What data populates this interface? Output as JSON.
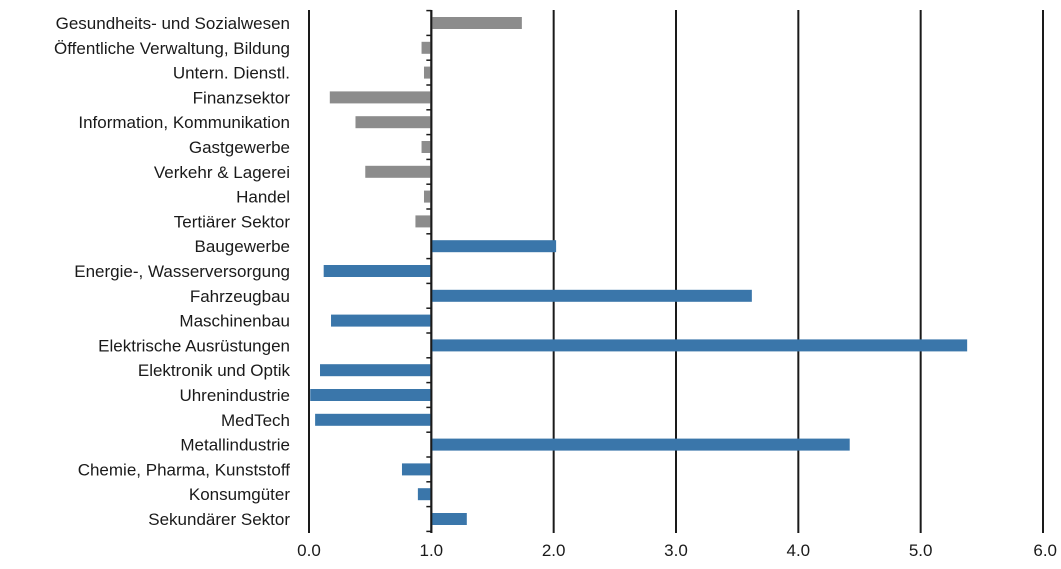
{
  "chart_data": {
    "type": "bar",
    "orientation": "horizontal",
    "categories": [
      "Gesundheits- und Sozialwesen",
      "Öffentliche Verwaltung, Bildung",
      "Untern. Dienstl.",
      "Finanzsektor",
      "Information, Kommunikation",
      "Gastgewerbe",
      "Verkehr & Lagerei",
      "Handel",
      "Tertiärer Sektor",
      "Baugewerbe",
      "Energie-, Wasserversorgung",
      "Fahrzeugbau",
      "Maschinenbau",
      "Elektrische Ausrüstungen",
      "Elektronik und Optik",
      "Uhrenindustrie",
      "MedTech",
      "Metallindustrie",
      "Chemie, Pharma, Kunststoff",
      "Konsumgüter",
      "Sekundärer Sektor"
    ],
    "values": [
      1.74,
      0.92,
      0.94,
      0.17,
      0.38,
      0.92,
      0.46,
      0.94,
      0.87,
      2.02,
      0.12,
      3.62,
      0.18,
      5.38,
      0.09,
      0.01,
      0.05,
      4.42,
      0.76,
      0.89,
      1.29
    ],
    "sector_group": [
      "tertiary",
      "tertiary",
      "tertiary",
      "tertiary",
      "tertiary",
      "tertiary",
      "tertiary",
      "tertiary",
      "tertiary",
      "secondary",
      "secondary",
      "secondary",
      "secondary",
      "secondary",
      "secondary",
      "secondary",
      "secondary",
      "secondary",
      "secondary",
      "secondary",
      "secondary"
    ],
    "baseline": 1.0,
    "xlim": [
      0,
      6
    ],
    "xticks": [
      "0.0",
      "1.0",
      "2.0",
      "3.0",
      "4.0",
      "5.0",
      "6.0"
    ],
    "title": "",
    "xlabel": "",
    "ylabel": "",
    "grid": "vertical lines",
    "colors": {
      "tertiary": "#8c8c8c",
      "secondary": "#3a76aa",
      "grid": "#1a1a1a"
    }
  }
}
